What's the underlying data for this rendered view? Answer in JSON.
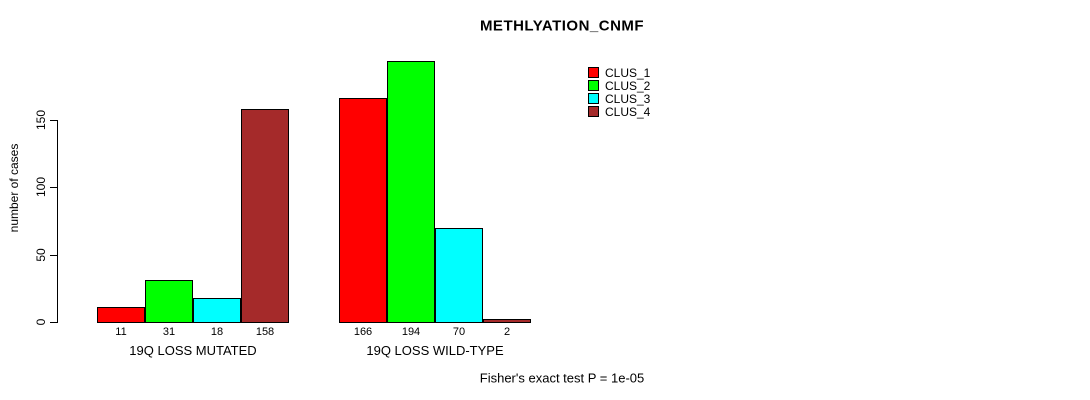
{
  "chart_data": {
    "type": "bar",
    "title": "METHLYATION_CNMF",
    "ylabel": "number of cases",
    "yticks": [
      0,
      50,
      100,
      150
    ],
    "ylim": [
      0,
      150
    ],
    "grid": false,
    "legend_position": "top-right",
    "series": [
      {
        "name": "CLUS_1",
        "color": "#FF0000"
      },
      {
        "name": "CLUS_2",
        "color": "#00FF00"
      },
      {
        "name": "CLUS_3",
        "color": "#00FFFF"
      },
      {
        "name": "CLUS_4",
        "color": "#A52A2A"
      }
    ],
    "groups": [
      {
        "label": "19Q LOSS MUTATED",
        "values": [
          11,
          31,
          18,
          158
        ]
      },
      {
        "label": "19Q LOSS WILD-TYPE",
        "values": [
          166,
          194,
          70,
          2
        ]
      }
    ],
    "bar_value_labels": [
      11,
      31,
      18,
      158,
      166,
      194,
      70,
      2
    ],
    "footnote": "Fisher's exact test P = 1e-05"
  }
}
